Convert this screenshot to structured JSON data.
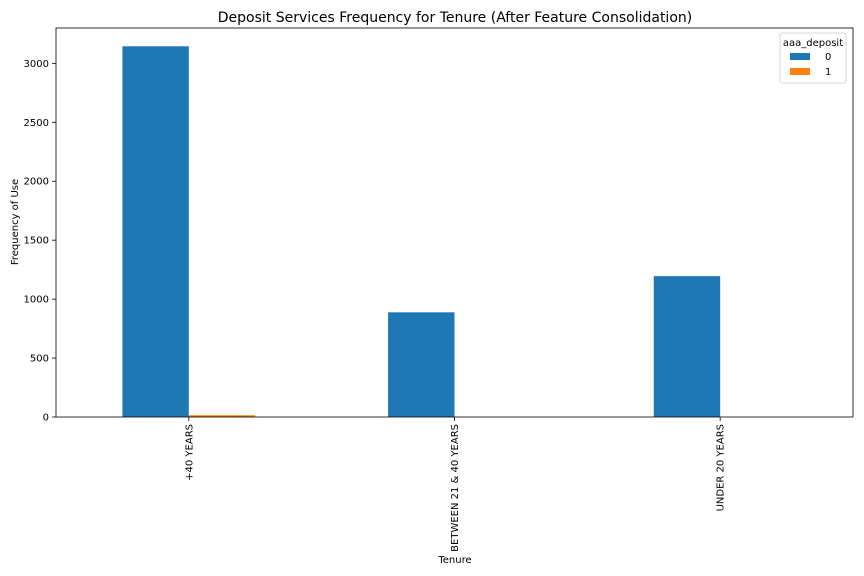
{
  "chart_data": {
    "type": "bar",
    "title": "Deposit Services Frequency for Tenure (After Feature Consolidation)",
    "xlabel": "Tenure",
    "ylabel": "Frequency of Use",
    "categories": [
      "+40 YEARS",
      "BETWEEN 21 & 40 YEARS",
      "UNDER 20 YEARS"
    ],
    "series": [
      {
        "name": "0",
        "values": [
          3145,
          888,
          1195
        ],
        "color": "#1f77b4"
      },
      {
        "name": "1",
        "values": [
          15,
          0,
          0
        ],
        "color": "#ff7f0e"
      }
    ],
    "ylim": [
      0,
      3300
    ],
    "yticks": [
      0,
      500,
      1000,
      1500,
      2000,
      2500,
      3000
    ],
    "x_tick_rotation": "vertical",
    "grid": false,
    "legend": {
      "title": "aaa_deposit",
      "placement": "top-right"
    }
  }
}
